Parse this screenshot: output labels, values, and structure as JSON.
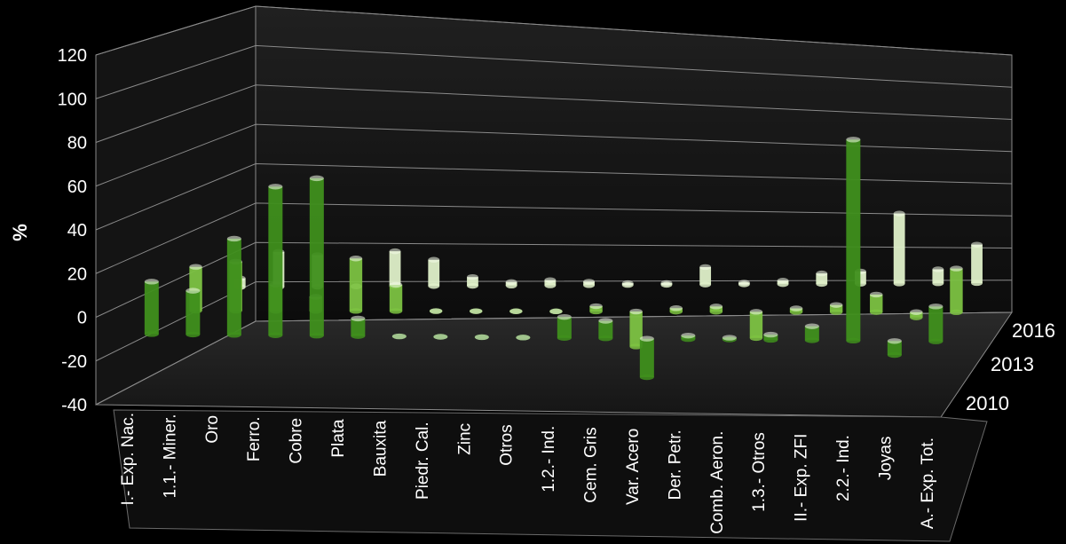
{
  "chart_data": {
    "type": "bar",
    "title": "",
    "ylabel": "%",
    "ylim": [
      -40,
      120
    ],
    "yticks": [
      -40,
      -20,
      0,
      20,
      40,
      60,
      80,
      100,
      120
    ],
    "grid": true,
    "categories": [
      "I.- Exp. Nac.",
      "1.1.- Miner.",
      "Oro",
      "Ferro.",
      "Cobre",
      "Plata",
      "Bauxita",
      "Piedr. Cal.",
      "Zinc",
      "Otros",
      "1.2.- Ind.",
      "Cem. Gris",
      "Var. Acero",
      "Der. Petr.",
      "Comb. Aeron.",
      "1.3.- Otros",
      "II.- Exp. ZFI",
      "2.2.- Ind.",
      "Joyas",
      "A.- Exp. Tot."
    ],
    "series": [
      {
        "name": "2010",
        "color": "#3f8f1c",
        "values": [
          30,
          25,
          55,
          85,
          90,
          10,
          0,
          0,
          0,
          0,
          12,
          10,
          -22,
          2,
          1,
          3,
          8,
          115,
          -8,
          20
        ]
      },
      {
        "name": "2013",
        "color": "#7cc242",
        "values": [
          25,
          28,
          15,
          8,
          30,
          15,
          0,
          0,
          0,
          0,
          3,
          -20,
          2,
          3,
          -15,
          2,
          4,
          10,
          -3,
          25
        ]
      },
      {
        "name": "2016",
        "color": "#dff0c9",
        "values": [
          5,
          20,
          18,
          0,
          20,
          15,
          5,
          2,
          3,
          2,
          1,
          1,
          10,
          1,
          2,
          6,
          7,
          40,
          8,
          22
        ]
      }
    ]
  },
  "series_labels": [
    "2010",
    "2013",
    "2016"
  ]
}
